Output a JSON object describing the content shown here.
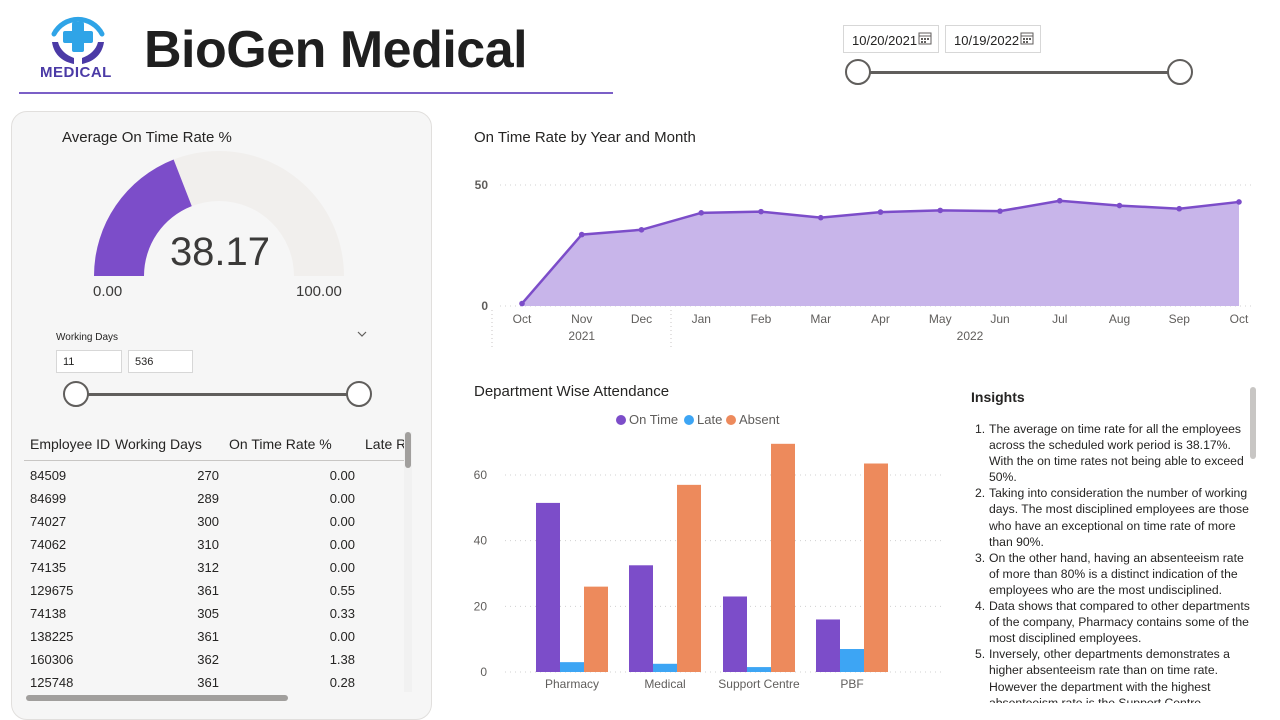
{
  "header": {
    "logo_text": "MEDICAL",
    "title": "BioGen Medical"
  },
  "date_slicer": {
    "start": "10/20/2021",
    "end": "10/19/2022"
  },
  "gauge": {
    "title": "Average On Time Rate %",
    "value": "38.17",
    "min": "0.00",
    "max": "100.00",
    "fraction": 0.3817,
    "color": "#7c4dc9",
    "track_color": "#f1efed"
  },
  "working_days": {
    "label": "Working Days",
    "min": "11",
    "max": "536"
  },
  "table": {
    "headers": [
      "Employee ID",
      "Working Days",
      "On Time Rate %",
      "Late Ra"
    ],
    "rows": [
      [
        "84509",
        "270",
        "0.00"
      ],
      [
        "84699",
        "289",
        "0.00"
      ],
      [
        "74027",
        "300",
        "0.00"
      ],
      [
        "74062",
        "310",
        "0.00"
      ],
      [
        "74135",
        "312",
        "0.00"
      ],
      [
        "129675",
        "361",
        "0.55"
      ],
      [
        "74138",
        "305",
        "0.33"
      ],
      [
        "138225",
        "361",
        "0.00"
      ],
      [
        "160306",
        "362",
        "1.38"
      ],
      [
        "125748",
        "361",
        "0.28"
      ]
    ]
  },
  "line_chart": {
    "title": "On Time Rate by Year and Month",
    "y_ticks": [
      "0",
      "50"
    ],
    "month_labels": [
      "Oct",
      "Nov",
      "Dec",
      "Jan",
      "Feb",
      "Mar",
      "Apr",
      "May",
      "Jun",
      "Jul",
      "Aug",
      "Sep",
      "Oct"
    ],
    "year_labels": [
      "2021",
      "2022"
    ]
  },
  "bar_chart": {
    "title": "Department Wise Attendance",
    "y_ticks": [
      "0",
      "20",
      "40",
      "60"
    ]
  },
  "insights": {
    "title": "Insights",
    "items": [
      "The average on time rate for all the employees across the scheduled work period is 38.17%. With the on time rates not being able to exceed 50%.",
      "Taking into consideration the number of working days. The most disciplined employees are those who have an exceptional on time rate of more than 90%.",
      "On the other hand, having an absenteeism rate of more than 80% is a distinct indication of the employees who are the most undisciplined.",
      "Data shows that compared to other departments of the company, Pharmacy contains some of the most disciplined employees.",
      "Inversely, other departments demonstrates a higher absenteeism rate than on time rate. However the department with the highest absenteeism rate is the Support Centre."
    ]
  },
  "chart_data": [
    {
      "type": "area",
      "title": "On Time Rate by Year and Month",
      "x": [
        "Oct 2021",
        "Nov 2021",
        "Dec 2021",
        "Jan 2022",
        "Feb 2022",
        "Mar 2022",
        "Apr 2022",
        "May 2022",
        "Jun 2022",
        "Jul 2022",
        "Aug 2022",
        "Sep 2022",
        "Oct 2022"
      ],
      "values": [
        1,
        29.5,
        31.5,
        38.5,
        39,
        36.5,
        38.8,
        39.5,
        39.2,
        43.5,
        41.5,
        40.2,
        43
      ],
      "ylim": [
        0,
        50
      ],
      "grid": true,
      "color": "#7c4dc9",
      "fill_color": "#c8b5ea"
    },
    {
      "type": "bar",
      "title": "Department Wise Attendance",
      "categories": [
        "Pharmacy",
        "Medical",
        "Support Centre",
        "PBF"
      ],
      "series": [
        {
          "name": "On Time",
          "values": [
            51.5,
            32.5,
            23,
            16
          ],
          "color": "#7c4dc9"
        },
        {
          "name": "Late",
          "values": [
            3,
            2.5,
            1.5,
            7
          ],
          "color": "#3da5f4"
        },
        {
          "name": "Absent",
          "values": [
            26,
            57,
            69.5,
            63.5
          ],
          "color": "#ed8a5c"
        }
      ],
      "ylim": [
        0,
        70
      ],
      "legend": "top",
      "grid": true
    }
  ]
}
